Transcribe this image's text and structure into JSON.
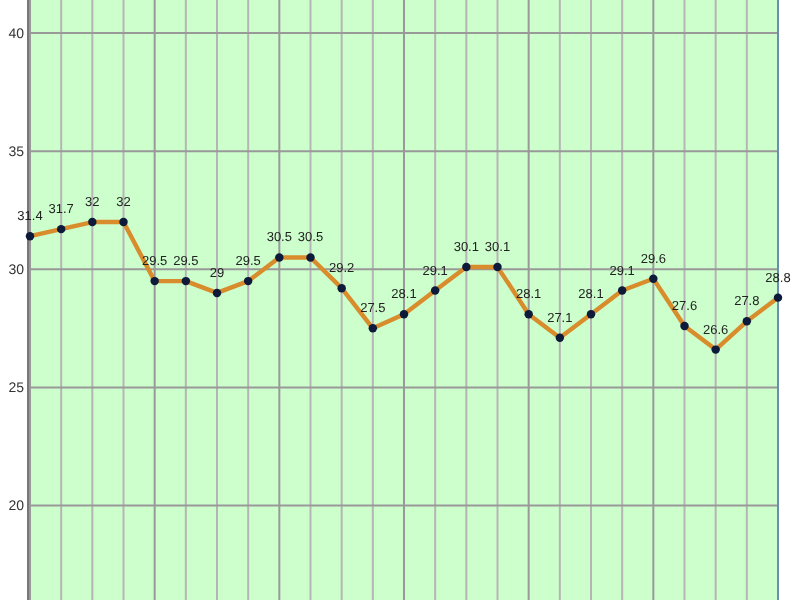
{
  "chart_data": {
    "type": "line",
    "categories": [
      null,
      null,
      null,
      null,
      null,
      null,
      null,
      null,
      null,
      null,
      null,
      null,
      null,
      null,
      null,
      null,
      null,
      null,
      null,
      null,
      null,
      null,
      null,
      null,
      null
    ],
    "series": [
      {
        "color": "#d98c2b",
        "values": [
          31.4,
          31.7,
          32,
          32,
          29.5,
          29.5,
          29,
          29.5,
          30.5,
          30.5,
          29.2,
          27.5,
          28.1,
          29.1,
          30.1,
          30.1,
          28.1,
          27.1,
          28.1,
          29.1,
          29.6,
          27.6,
          26.6,
          27.8,
          28.8
        ]
      }
    ],
    "ylim": [
      16,
      41.4
    ],
    "yticks": [
      20,
      25,
      30,
      35,
      40
    ],
    "grid": true,
    "marker": "circle",
    "line_style": "solid",
    "data_labels": true
  }
}
